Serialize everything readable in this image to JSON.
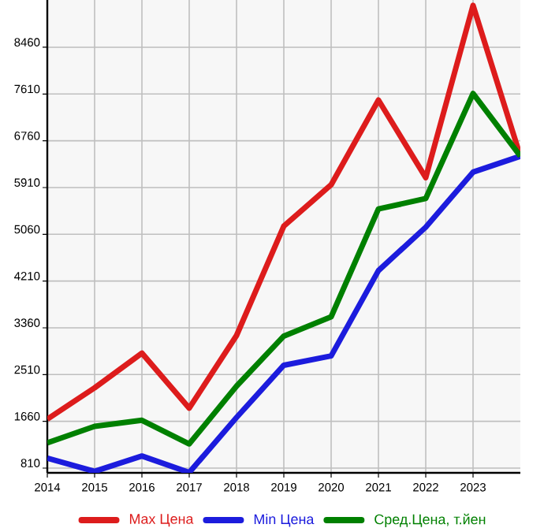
{
  "chart_data": {
    "type": "line",
    "x": [
      2014,
      2015,
      2016,
      2017,
      2018,
      2019,
      2020,
      2021,
      2022,
      2023,
      2024
    ],
    "series": [
      {
        "name": "Max Цена",
        "color": "#dd1c1c",
        "values": [
          1700,
          2270,
          2900,
          1900,
          3220,
          5210,
          5960,
          7500,
          6090,
          9220,
          6480
        ]
      },
      {
        "name": "Min Цена",
        "color": "#1c1cdd",
        "values": [
          990,
          750,
          1030,
          730,
          1730,
          2680,
          2850,
          4400,
          5190,
          6190,
          6480
        ]
      },
      {
        "name": "Сред.Цена, т.йен",
        "color": "#008000",
        "values": [
          1270,
          1570,
          1680,
          1250,
          2300,
          3210,
          3560,
          5520,
          5710,
          7620,
          6480
        ]
      }
    ],
    "xlim": [
      2014,
      2024
    ],
    "xticks": [
      2014,
      2015,
      2016,
      2017,
      2018,
      2019,
      2020,
      2021,
      2022,
      2023
    ],
    "ylim": [
      724,
      9319
    ],
    "yticks": [
      810,
      1660,
      2510,
      3360,
      4210,
      5060,
      5910,
      6760,
      7610,
      8460
    ],
    "grid": true,
    "legend": "bottom",
    "marker": "none",
    "line_style": "solid"
  }
}
